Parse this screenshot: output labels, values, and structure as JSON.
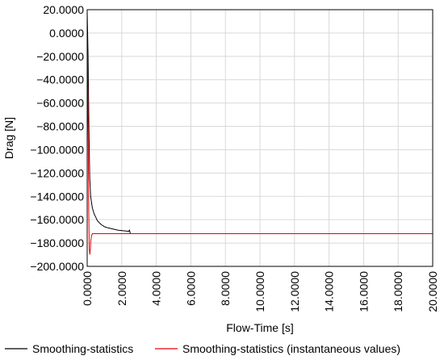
{
  "chart_data": {
    "type": "line",
    "xlabel": "Flow-Time [s]",
    "ylabel": "Drag [N]",
    "xlim": [
      0,
      20
    ],
    "ylim": [
      -200,
      20
    ],
    "x_ticks": [
      0,
      2,
      4,
      6,
      8,
      10,
      12,
      14,
      16,
      18,
      20
    ],
    "x_tick_labels": [
      "0.0000",
      "2.0000",
      "4.0000",
      "6.0000",
      "8.0000",
      "10.0000",
      "12.0000",
      "14.0000",
      "16.0000",
      "18.0000",
      "20.0000"
    ],
    "y_ticks": [
      20,
      0,
      -20,
      -40,
      -60,
      -80,
      -100,
      -120,
      -140,
      -160,
      -180,
      -200
    ],
    "y_tick_labels": [
      "20.0000",
      "0.0000",
      "−20.0000",
      "−40.0000",
      "−60.0000",
      "−80.0000",
      "−100.0000",
      "−120.0000",
      "−140.0000",
      "−160.0000",
      "−180.0000",
      "−200.0000"
    ],
    "grid": true,
    "legend_position": "bottom",
    "series": [
      {
        "name": "Smoothing-statistics",
        "color": "#000000",
        "x": [
          0,
          0.05,
          0.1,
          0.15,
          0.2,
          0.3,
          0.4,
          0.5,
          0.6,
          0.8,
          1.0,
          1.2,
          1.5,
          1.8,
          2.1,
          2.4,
          2.45,
          2.5,
          2.55
        ],
        "y": [
          18,
          -20,
          -80,
          -125,
          -140,
          -150,
          -155,
          -158,
          -161,
          -164,
          -166,
          -167,
          -168,
          -169,
          -169.5,
          -170,
          -169,
          -172,
          -172
        ]
      },
      {
        "name": "Smoothing-statistics (instantaneous values)",
        "color": "#e8000b",
        "x": [
          0,
          0.03,
          0.06,
          0.09,
          0.12,
          0.15,
          0.18,
          0.21,
          0.25,
          0.3,
          0.35,
          0.4,
          0.5,
          1.0,
          2.0,
          5.0,
          10.0,
          15.0,
          20.0
        ],
        "y": [
          2,
          -40,
          -100,
          -150,
          -185,
          -190,
          -186,
          -178,
          -174,
          -172,
          -172,
          -172,
          -172,
          -172,
          -172,
          -172,
          -172,
          -172,
          -172
        ]
      }
    ]
  }
}
